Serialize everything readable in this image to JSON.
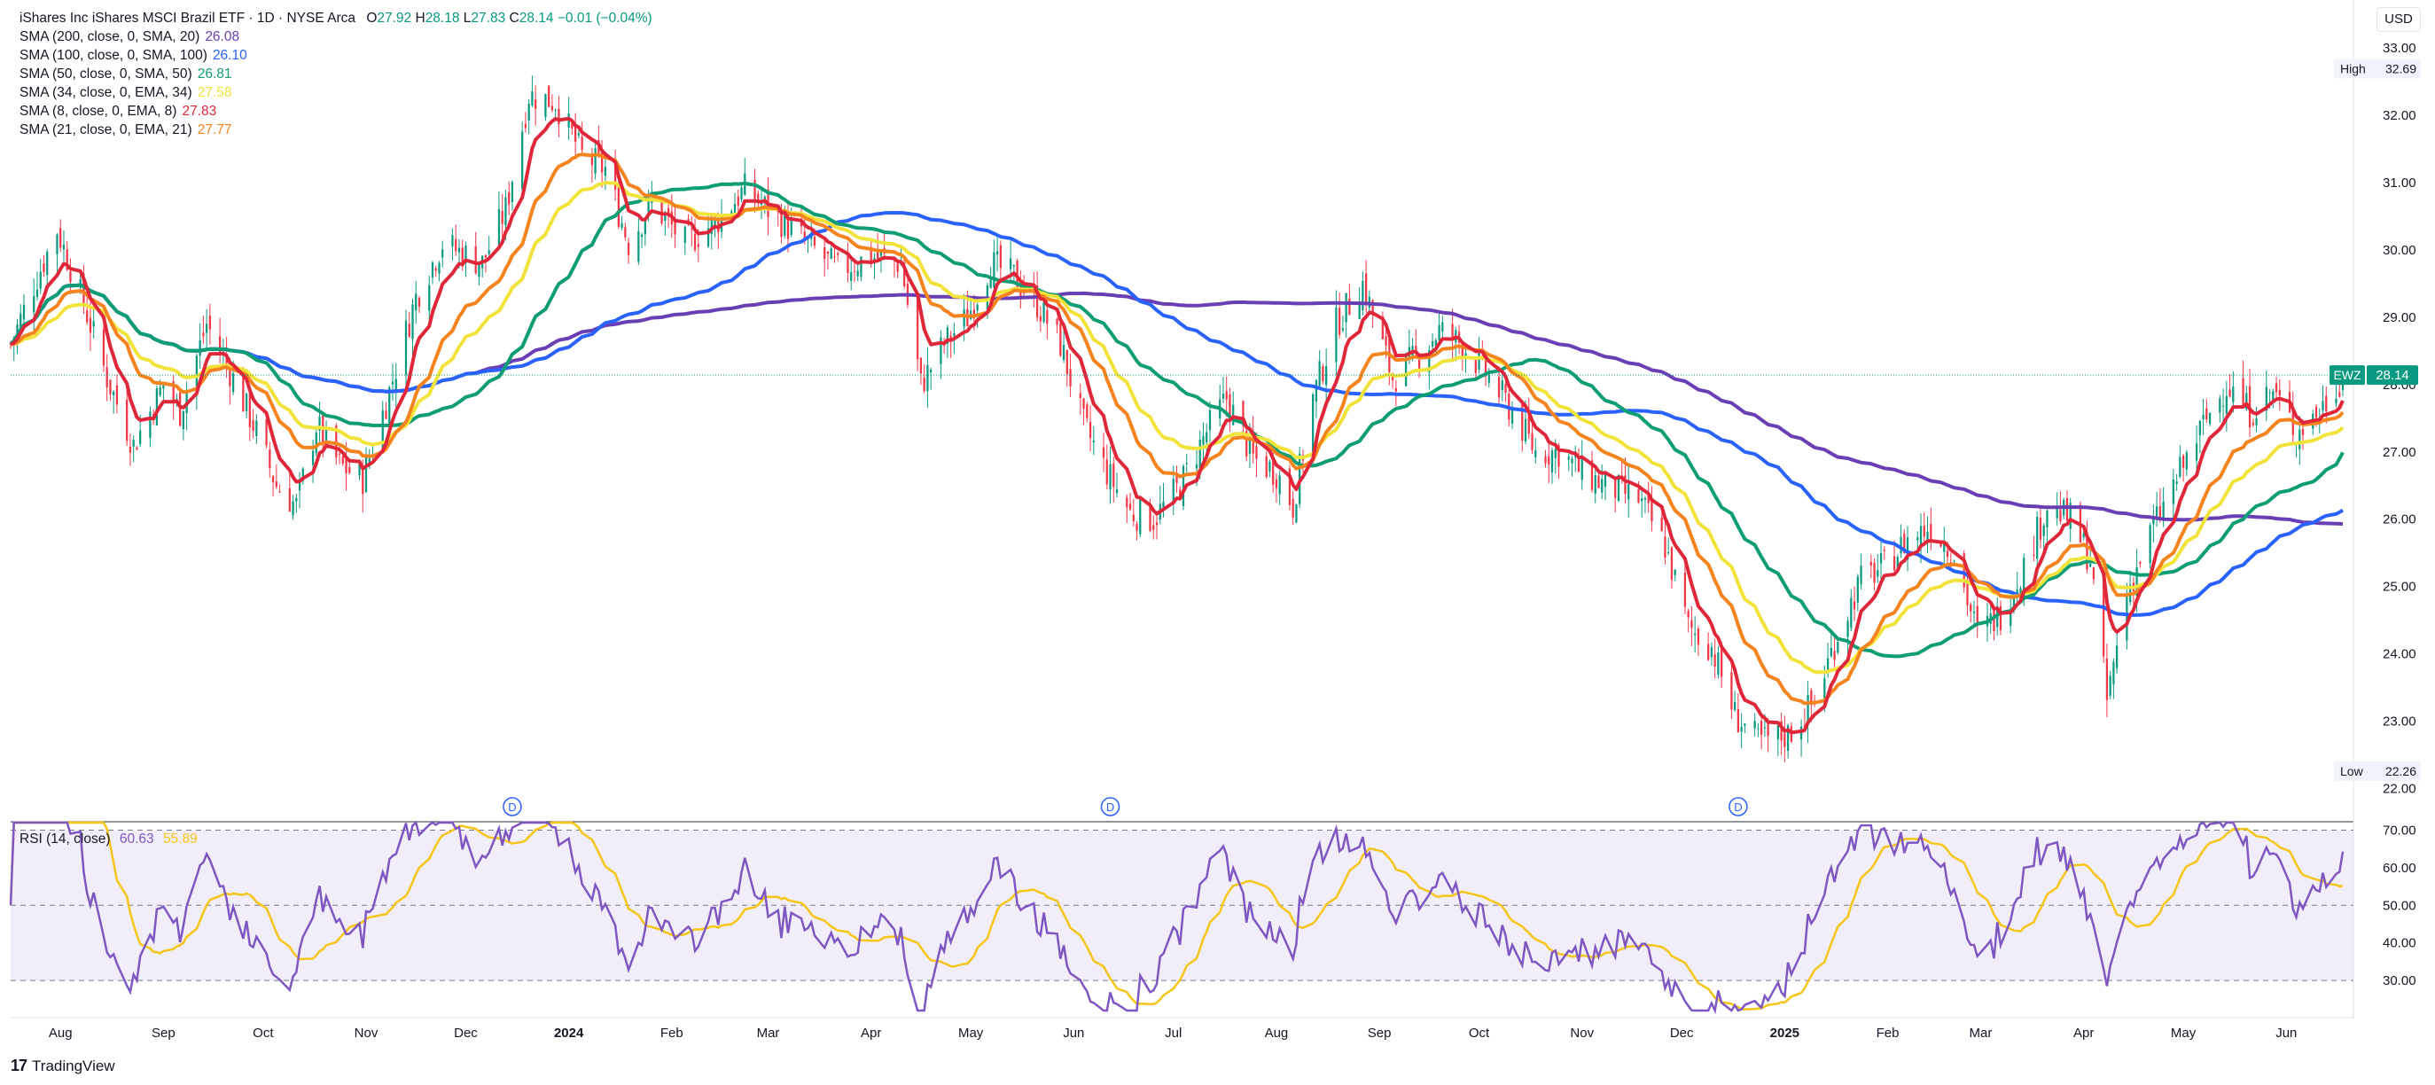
{
  "header": {
    "symbol_title": "iShares Inc iShares MSCI Brazil ETF · 1D · NYSE Arca",
    "open_label": "O",
    "open": "27.92",
    "high_label": "H",
    "high": "28.18",
    "low_label": "L",
    "low": "27.83",
    "close_label": "C",
    "close": "28.14",
    "change": "−0.01 (−0.04%)"
  },
  "currency_badge": "USD",
  "branding": "TradingView",
  "indicators": [
    {
      "label": "SMA (200, close, 0, SMA, 20)",
      "value": "26.08",
      "color": "#6a3eb4"
    },
    {
      "label": "SMA (100, close, 0, SMA, 100)",
      "value": "26.10",
      "color": "#2962ff"
    },
    {
      "label": "SMA (50, close, 0, SMA, 50)",
      "value": "26.81",
      "color": "#0f9d73"
    },
    {
      "label": "SMA (34, close, 0, EMA, 34)",
      "value": "27.58",
      "color": "#f2e33b"
    },
    {
      "label": "SMA (8, close, 0, EMA, 8)",
      "value": "27.83",
      "color": "#e0273a"
    },
    {
      "label": "SMA (21, close, 0, EMA, 21)",
      "value": "27.77",
      "color": "#f5841f"
    }
  ],
  "rsi_legend": {
    "label": "RSI (14, close)",
    "value": "60.63",
    "ma_value": "55.89",
    "color": "#7e57c2",
    "ma_color": "#f5c518"
  },
  "chart_data": {
    "type": "candlestick",
    "x_axis_labels": [
      {
        "text": "Aug",
        "date": "2023-08-01"
      },
      {
        "text": "Sep",
        "date": "2023-09-01"
      },
      {
        "text": "Oct",
        "date": "2023-10-01"
      },
      {
        "text": "Nov",
        "date": "2023-11-01"
      },
      {
        "text": "Dec",
        "date": "2023-12-01"
      },
      {
        "text": "2024",
        "date": "2024-01-01",
        "year": true
      },
      {
        "text": "Feb",
        "date": "2024-02-01"
      },
      {
        "text": "Mar",
        "date": "2024-03-01"
      },
      {
        "text": "Apr",
        "date": "2024-04-01"
      },
      {
        "text": "May",
        "date": "2024-05-01"
      },
      {
        "text": "Jun",
        "date": "2024-06-01"
      },
      {
        "text": "Jul",
        "date": "2024-07-01"
      },
      {
        "text": "Aug",
        "date": "2024-08-01"
      },
      {
        "text": "Sep",
        "date": "2024-09-01"
      },
      {
        "text": "Oct",
        "date": "2024-10-01"
      },
      {
        "text": "Nov",
        "date": "2024-11-01"
      },
      {
        "text": "Dec",
        "date": "2024-12-01"
      },
      {
        "text": "2025",
        "date": "2025-01-01",
        "year": true
      },
      {
        "text": "Feb",
        "date": "2025-02-01"
      },
      {
        "text": "Mar",
        "date": "2025-03-01"
      },
      {
        "text": "Apr",
        "date": "2025-04-01"
      },
      {
        "text": "May",
        "date": "2025-05-01"
      },
      {
        "text": "Jun",
        "date": "2025-06-01"
      }
    ],
    "date_range": [
      "2023-07-17",
      "2025-06-18"
    ],
    "price_axis": {
      "range": [
        21.6,
        33.5
      ],
      "ticks": [
        22.0,
        23.0,
        24.0,
        25.0,
        26.0,
        27.0,
        28.0,
        29.0,
        30.0,
        31.0,
        32.0,
        33.0
      ]
    },
    "rsi_axis": {
      "range": [
        22,
        72
      ],
      "ticks": [
        30.0,
        40.0,
        50.0,
        60.0,
        70.0
      ],
      "band": [
        30,
        70
      ]
    },
    "high_marker": {
      "label": "High",
      "value": "32.69"
    },
    "low_marker": {
      "label": "Low",
      "value": "22.26"
    },
    "last_price": {
      "symbol": "EWZ",
      "value": "28.14"
    },
    "dividend_marks": [
      {
        "label": "D",
        "date": "2023-12-15"
      },
      {
        "label": "D",
        "date": "2024-06-12"
      },
      {
        "label": "D",
        "date": "2024-12-18"
      }
    ],
    "close_keypoints": [
      [
        "2023-07-17",
        28.6
      ],
      [
        "2023-07-25",
        29.6
      ],
      [
        "2023-07-31",
        30.3
      ],
      [
        "2023-08-08",
        29.2
      ],
      [
        "2023-08-15",
        28.1
      ],
      [
        "2023-08-23",
        27.1
      ],
      [
        "2023-09-01",
        28.0
      ],
      [
        "2023-09-06",
        27.6
      ],
      [
        "2023-09-14",
        28.9
      ],
      [
        "2023-09-21",
        28.2
      ],
      [
        "2023-09-29",
        27.3
      ],
      [
        "2023-10-05",
        26.5
      ],
      [
        "2023-10-11",
        26.2
      ],
      [
        "2023-10-17",
        27.4
      ],
      [
        "2023-10-24",
        26.8
      ],
      [
        "2023-10-31",
        26.6
      ],
      [
        "2023-11-08",
        27.9
      ],
      [
        "2023-11-16",
        29.3
      ],
      [
        "2023-11-24",
        30.1
      ],
      [
        "2023-12-06",
        29.8
      ],
      [
        "2023-12-13",
        30.6
      ],
      [
        "2023-12-20",
        32.3
      ],
      [
        "2023-12-28",
        32.2
      ],
      [
        "2024-01-05",
        31.4
      ],
      [
        "2024-01-12",
        31.2
      ],
      [
        "2024-01-19",
        30.1
      ],
      [
        "2024-01-26",
        30.7
      ],
      [
        "2024-02-05",
        30.1
      ],
      [
        "2024-02-14",
        30.4
      ],
      [
        "2024-02-23",
        30.9
      ],
      [
        "2024-03-01",
        30.6
      ],
      [
        "2024-03-08",
        30.3
      ],
      [
        "2024-03-15",
        30.0
      ],
      [
        "2024-03-22",
        29.7
      ],
      [
        "2024-04-01",
        29.9
      ],
      [
        "2024-04-10",
        29.8
      ],
      [
        "2024-04-16",
        28.0
      ],
      [
        "2024-04-23",
        28.6
      ],
      [
        "2024-04-30",
        29.0
      ],
      [
        "2024-05-07",
        29.8
      ],
      [
        "2024-05-14",
        29.6
      ],
      [
        "2024-05-21",
        29.2
      ],
      [
        "2024-05-28",
        28.6
      ],
      [
        "2024-06-04",
        27.4
      ],
      [
        "2024-06-11",
        26.7
      ],
      [
        "2024-06-18",
        26.1
      ],
      [
        "2024-06-25",
        26.0
      ],
      [
        "2024-07-03",
        26.5
      ],
      [
        "2024-07-11",
        27.3
      ],
      [
        "2024-07-17",
        27.8
      ],
      [
        "2024-07-25",
        26.9
      ],
      [
        "2024-08-01",
        26.7
      ],
      [
        "2024-08-06",
        26.2
      ],
      [
        "2024-08-12",
        27.8
      ],
      [
        "2024-08-19",
        28.9
      ],
      [
        "2024-08-27",
        29.5
      ],
      [
        "2024-09-05",
        28.1
      ],
      [
        "2024-09-12",
        28.4
      ],
      [
        "2024-09-19",
        28.8
      ],
      [
        "2024-09-26",
        28.6
      ],
      [
        "2024-10-04",
        28.1
      ],
      [
        "2024-10-11",
        27.6
      ],
      [
        "2024-10-18",
        27.0
      ],
      [
        "2024-10-25",
        27.0
      ],
      [
        "2024-11-01",
        26.7
      ],
      [
        "2024-11-08",
        26.5
      ],
      [
        "2024-11-18",
        26.3
      ],
      [
        "2024-11-26",
        25.6
      ],
      [
        "2024-12-03",
        24.4
      ],
      [
        "2024-12-10",
        24.1
      ],
      [
        "2024-12-17",
        23.1
      ],
      [
        "2024-12-24",
        22.7
      ],
      [
        "2025-01-02",
        22.8
      ],
      [
        "2025-01-10",
        23.3
      ],
      [
        "2025-01-17",
        24.3
      ],
      [
        "2025-01-24",
        25.1
      ],
      [
        "2025-01-31",
        25.3
      ],
      [
        "2025-02-07",
        25.7
      ],
      [
        "2025-02-14",
        25.9
      ],
      [
        "2025-02-21",
        25.5
      ],
      [
        "2025-02-28",
        24.3
      ],
      [
        "2025-03-07",
        24.6
      ],
      [
        "2025-03-14",
        25.3
      ],
      [
        "2025-03-21",
        26.2
      ],
      [
        "2025-03-28",
        26.0
      ],
      [
        "2025-04-03",
        25.4
      ],
      [
        "2025-04-08",
        23.3
      ],
      [
        "2025-04-14",
        24.9
      ],
      [
        "2025-04-22",
        25.9
      ],
      [
        "2025-04-30",
        26.7
      ],
      [
        "2025-05-07",
        27.4
      ],
      [
        "2025-05-14",
        28.0
      ],
      [
        "2025-05-21",
        27.6
      ],
      [
        "2025-05-28",
        27.9
      ],
      [
        "2025-06-04",
        27.3
      ],
      [
        "2025-06-11",
        27.6
      ],
      [
        "2025-06-18",
        28.14
      ]
    ]
  }
}
